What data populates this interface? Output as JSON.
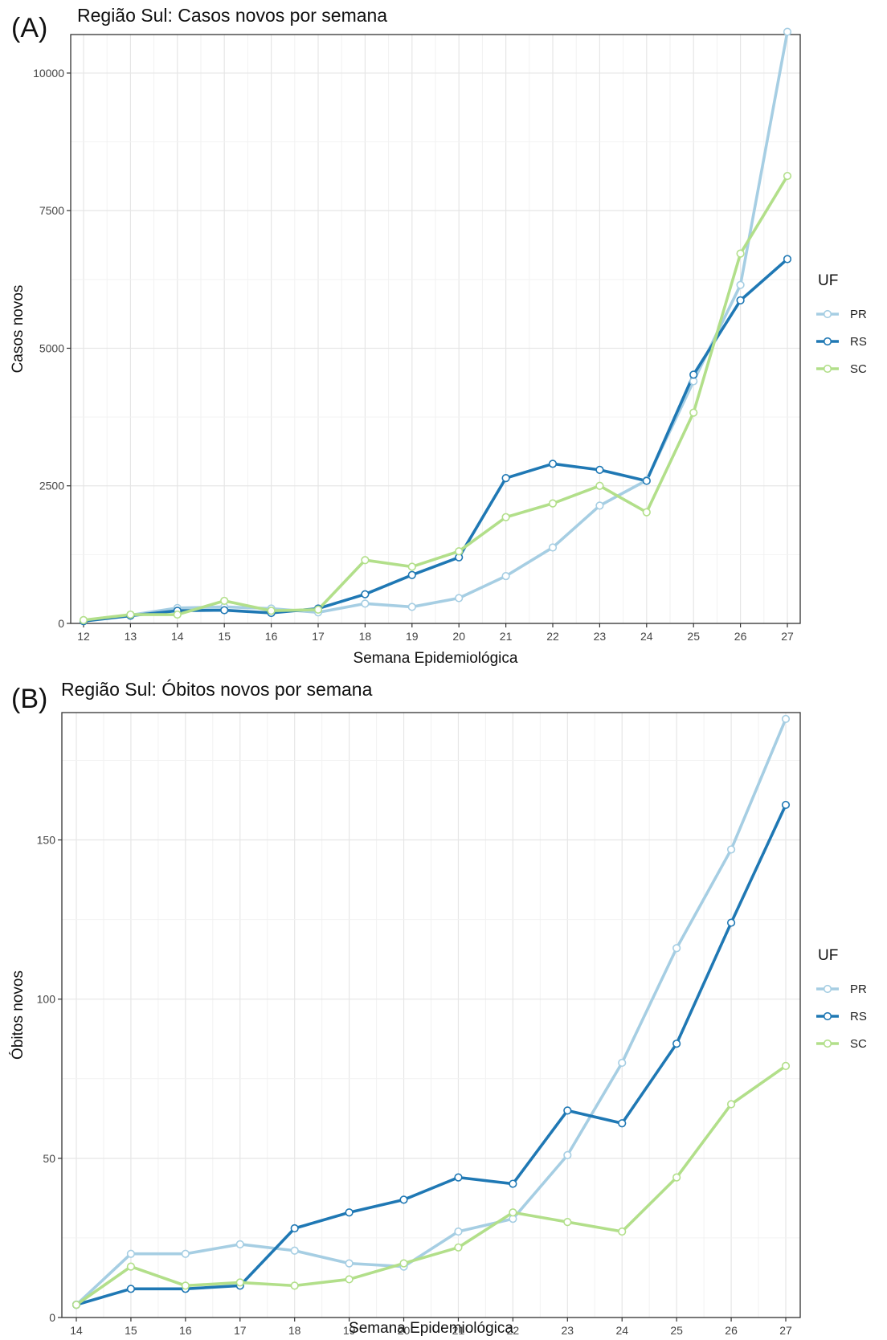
{
  "chart_data": [
    {
      "panel_label": "(A)",
      "type": "line",
      "title": "Região Sul: Casos novos por semana",
      "xlabel": "Semana Epidemiológica",
      "ylabel": "Casos novos",
      "x": [
        12,
        13,
        14,
        15,
        16,
        17,
        18,
        19,
        20,
        21,
        22,
        23,
        24,
        25,
        26,
        27
      ],
      "xlim": [
        12,
        27
      ],
      "ylim": [
        0,
        10700
      ],
      "yticks": [
        0,
        2500,
        5000,
        7500,
        10000
      ],
      "grid": true,
      "legend_title": "UF",
      "legend_position": "right",
      "series": [
        {
          "name": "PR",
          "color": "#a6cee3",
          "values": [
            50,
            150,
            280,
            300,
            270,
            200,
            360,
            300,
            460,
            860,
            1380,
            2140,
            2600,
            4400,
            6150,
            10750
          ]
        },
        {
          "name": "RS",
          "color": "#1f78b4",
          "values": [
            40,
            140,
            230,
            240,
            190,
            270,
            530,
            880,
            1200,
            2640,
            2900,
            2790,
            2590,
            4520,
            5870,
            6620
          ]
        },
        {
          "name": "SC",
          "color": "#b2df8a",
          "values": [
            60,
            160,
            160,
            410,
            230,
            250,
            1150,
            1030,
            1310,
            1930,
            2180,
            2500,
            2020,
            3830,
            6720,
            8130
          ]
        }
      ]
    },
    {
      "panel_label": "(B)",
      "type": "line",
      "title": "Região Sul: Óbitos novos por semana",
      "xlabel": "Semana Epidemiológica",
      "ylabel": "Óbitos novos",
      "x": [
        14,
        15,
        16,
        17,
        18,
        19,
        20,
        21,
        22,
        23,
        24,
        25,
        26,
        27
      ],
      "xlim": [
        14,
        27
      ],
      "ylim": [
        0,
        190
      ],
      "yticks": [
        0,
        50,
        100,
        150
      ],
      "grid": true,
      "legend_title": "UF",
      "legend_position": "right",
      "series": [
        {
          "name": "PR",
          "color": "#a6cee3",
          "values": [
            4,
            20,
            20,
            23,
            21,
            17,
            16,
            27,
            31,
            51,
            80,
            116,
            147,
            188
          ]
        },
        {
          "name": "RS",
          "color": "#1f78b4",
          "values": [
            4,
            9,
            9,
            10,
            28,
            33,
            37,
            44,
            42,
            65,
            61,
            86,
            124,
            161
          ]
        },
        {
          "name": "SC",
          "color": "#b2df8a",
          "values": [
            4,
            16,
            10,
            11,
            10,
            12,
            17,
            22,
            33,
            30,
            27,
            44,
            67,
            79
          ]
        }
      ]
    }
  ]
}
